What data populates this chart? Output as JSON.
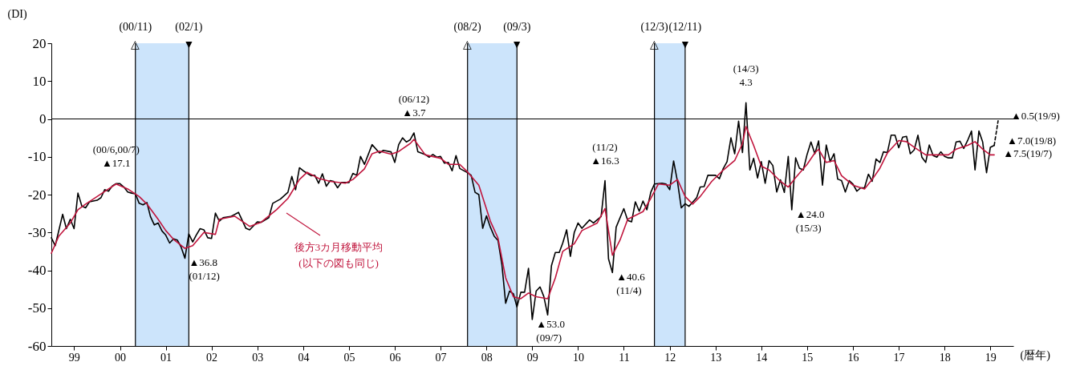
{
  "chart_data": {
    "type": "line",
    "ylabel": "(DI)",
    "xlabel": "(暦年)",
    "xlim": [
      "1999-01",
      "2020-01"
    ],
    "ylim": [
      -60,
      20
    ],
    "yticks": [
      -60,
      -50,
      -40,
      -30,
      -20,
      -10,
      0,
      10,
      20
    ],
    "xticks": [
      {
        "value": "1999-07",
        "label": "99"
      },
      {
        "value": "2000-07",
        "label": "00"
      },
      {
        "value": "2001-07",
        "label": "01"
      },
      {
        "value": "2002-07",
        "label": "02"
      },
      {
        "value": "2003-07",
        "label": "03"
      },
      {
        "value": "2004-07",
        "label": "04"
      },
      {
        "value": "2005-07",
        "label": "05"
      },
      {
        "value": "2006-07",
        "label": "06"
      },
      {
        "value": "2007-07",
        "label": "07"
      },
      {
        "value": "2008-07",
        "label": "08"
      },
      {
        "value": "2009-07",
        "label": "09"
      },
      {
        "value": "2010-07",
        "label": "10"
      },
      {
        "value": "2011-07",
        "label": "11"
      },
      {
        "value": "2012-07",
        "label": "12"
      },
      {
        "value": "2013-07",
        "label": "13"
      },
      {
        "value": "2014-07",
        "label": "14"
      },
      {
        "value": "2015-07",
        "label": "15"
      },
      {
        "value": "2016-07",
        "label": "16"
      },
      {
        "value": "2017-07",
        "label": "17"
      },
      {
        "value": "2018-07",
        "label": "18"
      },
      {
        "value": "2019-07",
        "label": "19"
      }
    ],
    "series": [
      {
        "color": "#000000",
        "x": [
          "1999-01",
          "1999-02",
          "1999-04",
          "1999-05",
          "1999-06",
          "1999-07",
          "1999-08",
          "1999-09",
          "1999-10",
          "1999-11",
          "2000-01",
          "2000-02",
          "2000-03",
          "2000-04",
          "2000-05",
          "2000-06",
          "2000-07",
          "2000-08",
          "2000-09",
          "2000-10",
          "2000-11",
          "2000-12",
          "2001-01",
          "2001-02",
          "2001-03",
          "2001-04",
          "2001-05",
          "2001-06",
          "2001-07",
          "2001-08",
          "2001-09",
          "2001-10",
          "2001-11",
          "2001-12",
          "2002-01",
          "2002-02",
          "2002-03",
          "2002-04",
          "2002-05",
          "2002-06",
          "2002-07",
          "2002-08",
          "2002-09",
          "2002-10",
          "2002-12",
          "2003-02",
          "2003-04",
          "2003-05",
          "2003-07",
          "2003-08",
          "2003-10",
          "2003-11",
          "2004-01",
          "2004-03",
          "2004-04",
          "2004-05",
          "2004-06",
          "2004-07",
          "2004-09",
          "2004-10",
          "2004-11",
          "2004-12",
          "2005-01",
          "2005-02",
          "2005-03",
          "2005-04",
          "2005-05",
          "2005-07",
          "2005-08",
          "2005-09",
          "2005-10",
          "2005-11",
          "2006-01",
          "2006-03",
          "2006-04",
          "2006-06",
          "2006-07",
          "2006-08",
          "2006-09",
          "2006-10",
          "2006-11",
          "2006-12",
          "2007-01",
          "2007-03",
          "2007-04",
          "2007-05",
          "2007-06",
          "2007-07",
          "2007-08",
          "2007-09",
          "2007-10",
          "2007-11",
          "2007-12",
          "2008-02",
          "2008-03",
          "2008-04",
          "2008-05",
          "2008-06",
          "2008-07",
          "2008-08",
          "2008-09",
          "2008-10",
          "2008-11",
          "2008-12",
          "2009-01",
          "2009-02",
          "2009-03",
          "2009-04",
          "2009-05",
          "2009-06",
          "2009-07",
          "2009-08",
          "2009-09",
          "2009-10",
          "2009-11",
          "2009-12",
          "2010-01",
          "2010-02",
          "2010-03",
          "2010-04",
          "2010-05",
          "2010-06",
          "2010-07",
          "2010-08",
          "2010-10",
          "2010-11",
          "2011-01",
          "2011-02",
          "2011-03",
          "2011-04",
          "2011-05",
          "2011-07",
          "2011-08",
          "2011-09",
          "2011-10",
          "2011-11",
          "2011-12",
          "2012-01",
          "2012-02",
          "2012-03",
          "2012-05",
          "2012-06",
          "2012-07",
          "2012-08",
          "2012-09",
          "2012-10",
          "2012-11",
          "2012-12",
          "2013-02",
          "2013-03",
          "2013-04",
          "2013-05",
          "2013-07",
          "2013-08",
          "2013-09",
          "2013-10",
          "2013-11",
          "2013-12",
          "2014-01",
          "2014-02",
          "2014-03",
          "2014-04",
          "2014-05",
          "2014-06",
          "2014-07",
          "2014-08",
          "2014-09",
          "2014-10",
          "2014-11",
          "2014-12",
          "2015-01",
          "2015-02",
          "2015-03",
          "2015-04",
          "2015-05",
          "2015-06",
          "2015-07",
          "2015-08",
          "2015-09",
          "2015-10",
          "2015-11",
          "2015-12",
          "2016-01",
          "2016-02",
          "2016-03",
          "2016-04",
          "2016-05",
          "2016-06",
          "2016-07",
          "2016-08",
          "2016-09",
          "2016-10",
          "2016-11",
          "2016-12",
          "2017-01",
          "2017-02",
          "2017-03",
          "2017-04",
          "2017-05",
          "2017-06",
          "2017-07",
          "2017-08",
          "2017-09",
          "2017-10",
          "2017-11",
          "2017-12",
          "2018-01",
          "2018-02",
          "2018-03",
          "2018-04",
          "2018-05",
          "2018-06",
          "2018-07",
          "2018-08",
          "2018-09",
          "2018-10",
          "2018-11",
          "2018-12",
          "2019-01",
          "2019-02",
          "2019-03",
          "2019-04",
          "2019-05",
          "2019-06",
          "2019-07",
          "2019-08"
        ],
        "values": [
          -31.4,
          -33.5,
          -25.2,
          -29,
          -26.5,
          -29,
          -19.6,
          -23,
          -23.5,
          -21.9,
          -21.5,
          -20.8,
          -18.7,
          -19.1,
          -17.7,
          -17.1,
          -17.1,
          -18,
          -19.3,
          -19.6,
          -19.8,
          -22.3,
          -22.7,
          -22.1,
          -25.8,
          -28,
          -27.5,
          -29.6,
          -30.7,
          -32.8,
          -31.7,
          -32,
          -33.9,
          -36.8,
          -30.4,
          -32.5,
          -30.7,
          -29,
          -29.3,
          -31.4,
          -31.6,
          -24.9,
          -27,
          -26.1,
          -25.8,
          -24.7,
          -28.9,
          -29.3,
          -27.2,
          -27.3,
          -26.1,
          -22.3,
          -21.2,
          -19.4,
          -15.2,
          -18.7,
          -12.9,
          -13.7,
          -15,
          -14.9,
          -17,
          -14.5,
          -17.8,
          -16.3,
          -16.5,
          -18.2,
          -16.8,
          -16.8,
          -14.4,
          -14.9,
          -9.9,
          -12,
          -6.8,
          -9,
          -8.3,
          -8.7,
          -11.5,
          -6.8,
          -5,
          -6.1,
          -5.5,
          -3.7,
          -8.7,
          -9.4,
          -10.1,
          -9.4,
          -10.1,
          -9.9,
          -11.7,
          -11.5,
          -13.7,
          -9.7,
          -13.1,
          -14.2,
          -14.9,
          -19.4,
          -20,
          -28.9,
          -25.6,
          -28.6,
          -31,
          -32.1,
          -38.5,
          -48.7,
          -45.5,
          -46.2,
          -49.7,
          -45.8,
          -45.8,
          -39.5,
          -53.0,
          -45.5,
          -44.4,
          -46.9,
          -51.8,
          -38.8,
          -35.3,
          -35.3,
          -32.8,
          -29.3,
          -36.3,
          -30,
          -27.5,
          -28.9,
          -26.7,
          -27.5,
          -25.8,
          -16.3,
          -37,
          -40.6,
          -28.6,
          -23.7,
          -26.8,
          -27.2,
          -21.9,
          -24.4,
          -21.7,
          -24,
          -19.4,
          -17.2,
          -17,
          -17.2,
          -18.7,
          -11.1,
          -16.6,
          -23.5,
          -22.4,
          -23.1,
          -20.8,
          -18,
          -17.9,
          -14.9,
          -14.9,
          -15.8,
          -13.1,
          -11.3,
          -5,
          -9.2,
          -0.6,
          -8.9,
          4.3,
          -13.5,
          -10.4,
          -15.6,
          -11.3,
          -17,
          -11,
          -12.3,
          -19.3,
          -16.1,
          -19.4,
          -9.9,
          -24.0,
          -10.3,
          -13,
          -13.5,
          -9.4,
          -6.1,
          -9.2,
          -5.8,
          -17.5,
          -6.9,
          -11.3,
          -9.2,
          -15.9,
          -16.3,
          -19.3,
          -16.3,
          -17.2,
          -19.1,
          -18.2,
          -18.2,
          -14.6,
          -16.5,
          -10.6,
          -11.5,
          -8.7,
          -8.9,
          -4.3,
          -4.3,
          -7.6,
          -4.8,
          -4.6,
          -9.2,
          -8.2,
          -4.3,
          -10.1,
          -11.5,
          -6.9,
          -9.7,
          -10.1,
          -8.7,
          -9.9,
          -10.3,
          -10.3,
          -6.1,
          -5.9,
          -7.8,
          -5.7,
          -3.2,
          -13.5,
          -3.2,
          -6.1,
          -14.2,
          -7.5,
          -7.0
        ]
      },
      {
        "color": "#c0143c",
        "x": [
          "1999-01",
          "1999-03",
          "1999-06",
          "1999-08",
          "1999-10",
          "2000-01",
          "2000-04",
          "2000-06",
          "2000-09",
          "2000-12",
          "2001-02",
          "2001-05",
          "2001-07",
          "2001-09",
          "2001-12",
          "2002-02",
          "2002-05",
          "2002-08",
          "2002-09",
          "2003-01",
          "2003-05",
          "2003-08",
          "2003-12",
          "2004-03",
          "2004-06",
          "2004-08",
          "2004-11",
          "2005-02",
          "2005-06",
          "2005-08",
          "2005-11",
          "2006-01",
          "2006-03",
          "2006-06",
          "2006-08",
          "2006-11",
          "2006-12",
          "2007-03",
          "2007-07",
          "2007-09",
          "2007-12",
          "2008-02",
          "2008-05",
          "2008-08",
          "2008-10",
          "2008-12",
          "2009-02",
          "2009-04",
          "2009-06",
          "2009-08",
          "2009-11",
          "2010-01",
          "2010-03",
          "2010-06",
          "2010-08",
          "2010-12",
          "2011-02",
          "2011-04",
          "2011-06",
          "2011-08",
          "2011-12",
          "2012-02",
          "2012-04",
          "2012-07",
          "2012-09",
          "2012-11",
          "2013-01",
          "2013-03",
          "2013-06",
          "2013-09",
          "2013-12",
          "2014-02",
          "2014-03",
          "2014-05",
          "2014-07",
          "2014-09",
          "2014-12",
          "2015-02",
          "2015-04",
          "2015-07",
          "2015-09",
          "2015-10",
          "2015-12",
          "2016-02",
          "2016-04",
          "2016-07",
          "2016-10",
          "2016-12",
          "2017-02",
          "2017-04",
          "2017-07",
          "2017-09",
          "2017-11",
          "2018-02",
          "2018-05",
          "2018-08",
          "2018-10",
          "2019-01",
          "2019-03",
          "2019-05",
          "2019-07",
          "2019-08"
        ],
        "values": [
          -35.5,
          -31,
          -27.5,
          -24,
          -22.5,
          -20.5,
          -18.5,
          -17.2,
          -18.5,
          -20.5,
          -22.5,
          -26.5,
          -29.5,
          -31.8,
          -34.2,
          -33.5,
          -30,
          -30.5,
          -26.5,
          -25.7,
          -28.4,
          -27.3,
          -24,
          -21,
          -16,
          -14.1,
          -15.7,
          -16.5,
          -17,
          -16,
          -13.2,
          -9.2,
          -8.5,
          -9.3,
          -8.6,
          -6.5,
          -5.4,
          -9.5,
          -10.4,
          -12,
          -12,
          -14,
          -17.5,
          -27,
          -31.5,
          -42,
          -47,
          -47.5,
          -46,
          -47,
          -47.5,
          -42,
          -35,
          -33,
          -29.5,
          -27.5,
          -23.7,
          -36,
          -32,
          -26.5,
          -24.5,
          -21,
          -17.2,
          -17.5,
          -16,
          -20.5,
          -22.5,
          -20.5,
          -16.5,
          -13.5,
          -11,
          -6.5,
          -2,
          -7,
          -12.5,
          -13.5,
          -16.5,
          -18,
          -15.5,
          -12,
          -9,
          -8,
          -11.5,
          -11,
          -15,
          -17.5,
          -18.5,
          -16,
          -13,
          -9,
          -5.7,
          -6,
          -7.5,
          -9.5,
          -9.5,
          -9.5,
          -8,
          -7,
          -6,
          -8,
          -9.5,
          -9.5
        ]
      },
      {
        "color": "#000000",
        "line_style": "dashed",
        "x": [
          "2019-08",
          "2019-09"
        ],
        "values": [
          -7.0,
          -0.5
        ]
      }
    ],
    "bands": [
      {
        "axis": "x",
        "from": "2000-11",
        "to": "2002-01",
        "color": "#cce4fb"
      },
      {
        "axis": "x",
        "from": "2008-02",
        "to": "2009-03",
        "color": "#cce4fb"
      },
      {
        "axis": "x",
        "from": "2012-03",
        "to": "2012-11",
        "color": "#cce4fb"
      }
    ],
    "ref_lines": [
      {
        "axis": "y",
        "value": 0
      },
      {
        "axis": "x",
        "value": "2000-11",
        "label": "(00/11)\n△"
      },
      {
        "axis": "x",
        "value": "2002-01",
        "label": "(02/1)\n▼"
      },
      {
        "axis": "x",
        "value": "2008-02",
        "label": "(08/2)\n△"
      },
      {
        "axis": "x",
        "value": "2009-03",
        "label": "(09/3)\n▼"
      },
      {
        "axis": "x",
        "value": "2012-03",
        "label": "(12/3)\n△"
      },
      {
        "axis": "x",
        "value": "2012-11",
        "label": "(12/11)\n▼"
      }
    ],
    "annotations": [
      {
        "text": "(00/6,00/7)\n▲17.1",
        "x": "2000-06",
        "y": -17.1
      },
      {
        "text": "▲36.8\n(01/12)",
        "x": "2001-12",
        "y": -36.8
      },
      {
        "text": "(06/12)\n▲3.7",
        "x": "2006-12",
        "y": -3.7
      },
      {
        "text": "▲53.0\n(09/7)",
        "x": "2009-07",
        "y": -53.0
      },
      {
        "text": "(11/2)\n▲16.3",
        "x": "2011-02",
        "y": -16.3
      },
      {
        "text": "▲40.6\n(11/4)",
        "x": "2011-04",
        "y": -40.6
      },
      {
        "text": "(14/3)\n4.3",
        "x": "2014-03",
        "y": 4.3
      },
      {
        "text": "▲24.0\n(15/3)",
        "x": "2015-03",
        "y": -24.0
      },
      {
        "text": "▲0.5(19/9)",
        "x": "2019-09",
        "y": -0.5
      },
      {
        "text": "▲7.0(19/8)",
        "x": "2019-08",
        "y": -7.0
      },
      {
        "text": "▲7.5(19/7)",
        "x": "2019-07",
        "y": -7.5
      },
      "後方3カ月移動平均\n(以下の図も同じ)"
    ]
  }
}
